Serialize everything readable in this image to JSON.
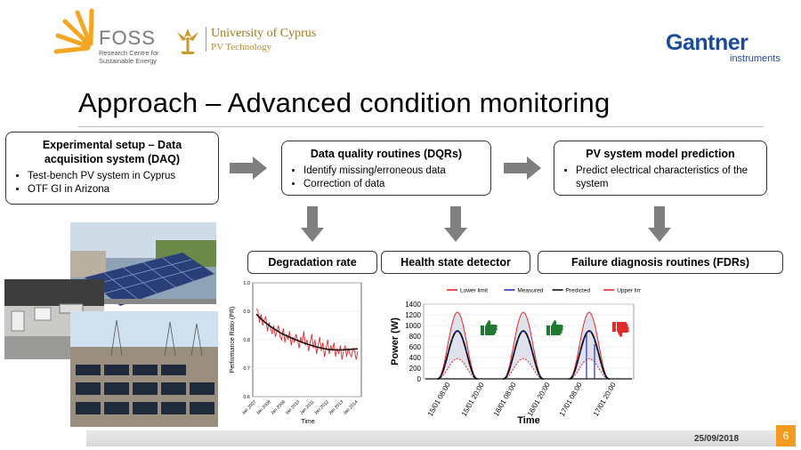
{
  "header": {
    "foss_name": "FOSS",
    "foss_sub1": "Research Centre for",
    "foss_sub2": "Sustainable Energy",
    "ucy_name": "University of Cyprus",
    "ucy_sub": "PV Technology",
    "gantner_name": "Gantner",
    "gantner_sub": "instruments"
  },
  "title": "Approach – Advanced condition monitoring",
  "boxes": {
    "daq": {
      "title_line1": "Experimental setup – Data",
      "title_line2": "acquisition system (DAQ)",
      "items": [
        "Test-bench PV system in Cyprus",
        "OTF GI in Arizona"
      ]
    },
    "dqr": {
      "title": "Data quality routines (DQRs)",
      "items": [
        "Identify missing/erroneous data",
        "Correction of data"
      ]
    },
    "model": {
      "title": "PV system model prediction",
      "items": [
        "Predict electrical characteristics of the system"
      ]
    }
  },
  "labels": {
    "degradation": "Degradation rate",
    "health": "Health state detector",
    "failure": "Failure diagnosis routines (FDRs)"
  },
  "chart_data": [
    {
      "type": "line",
      "xlabel": "Time",
      "ylabel": "Performance Ratio (PR)",
      "ylim": [
        0.6,
        1.0
      ],
      "yticks": [
        "0.6",
        "0.7",
        "0.8",
        "0.9",
        "1.0"
      ],
      "xticks": [
        "Jan 2007",
        "Jan 2008",
        "Jan 2009",
        "Jan 2010",
        "Jan 2011",
        "Jan 2012",
        "Jan 2013",
        "Jan 2014"
      ],
      "series": [
        {
          "color": "#e8282b",
          "values": [
            0.91,
            0.9,
            0.86,
            0.89,
            0.85,
            0.87,
            0.88,
            0.83,
            0.86,
            0.84,
            0.82,
            0.85,
            0.81,
            0.83,
            0.85,
            0.81,
            0.8,
            0.84,
            0.79,
            0.82,
            0.8,
            0.83,
            0.78,
            0.81,
            0.79,
            0.82,
            0.8,
            0.77,
            0.81,
            0.79,
            0.83,
            0.78,
            0.8,
            0.76,
            0.79,
            0.82,
            0.77,
            0.8,
            0.75,
            0.78,
            0.81,
            0.76,
            0.79,
            0.74,
            0.77,
            0.8,
            0.75,
            0.78,
            0.76,
            0.79,
            0.74,
            0.77,
            0.75,
            0.78,
            0.73,
            0.76,
            0.78,
            0.74,
            0.77,
            0.75,
            0.74,
            0.77,
            0.76,
            0.73,
            0.76
          ]
        },
        {
          "color": "#111111",
          "values": [
            0.89,
            0.875,
            0.862,
            0.85,
            0.84,
            0.831,
            0.822,
            0.815,
            0.808,
            0.802,
            0.796,
            0.79,
            0.785,
            0.78,
            0.776,
            0.772,
            0.769,
            0.766,
            0.765,
            0.764,
            0.764,
            0.765,
            0.766,
            0.767,
            0.768
          ]
        }
      ]
    },
    {
      "type": "line",
      "xlabel": "Time",
      "ylabel": "Power (W)",
      "ylim": [
        0,
        1400
      ],
      "yticks": [
        "0",
        "200",
        "400",
        "600",
        "800",
        "1000",
        "1200",
        "1400"
      ],
      "xticks": [
        "15/01 08:00",
        "15/01 20:00",
        "16/01 08:00",
        "16/01 20:00",
        "17/01 08:00",
        "17/01 20:00"
      ],
      "legend": [
        "Lower limit",
        "Measured",
        "Predicted",
        "Upper limit"
      ],
      "legend_colors": [
        "#e8282b",
        "#2233cc",
        "#111111",
        "#e8282b"
      ],
      "peaks": {
        "upper": 1250,
        "predicted": 900,
        "lower": 380
      },
      "status_icons": [
        "thumbs-up",
        "thumbs-up",
        "thumbs-down"
      ],
      "status_colors": [
        "#1e7a2e",
        "#1e7a2e",
        "#e02b2b"
      ]
    }
  ],
  "footer": {
    "date": "25/09/2018",
    "page": "6"
  }
}
